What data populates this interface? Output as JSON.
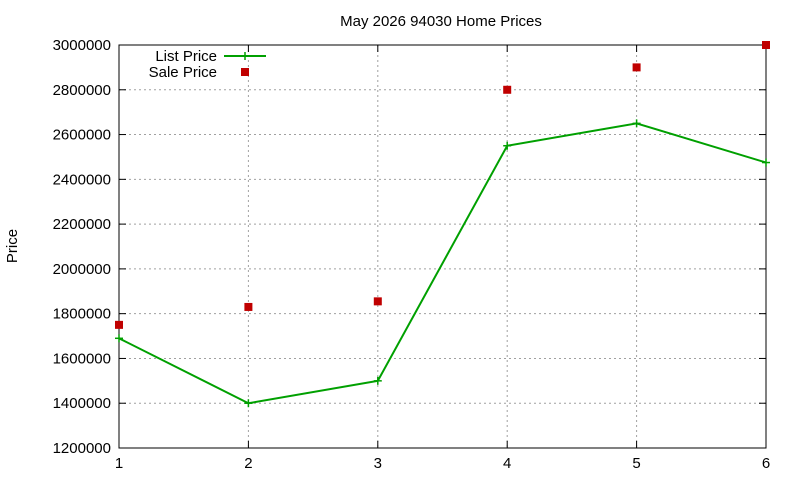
{
  "chart_data": {
    "type": "line",
    "title": "May 2026 94030 Home Prices",
    "xlabel": "",
    "ylabel": "Price",
    "x": [
      1,
      2,
      3,
      4,
      5,
      6
    ],
    "x_ticks": [
      "1",
      "2",
      "3",
      "4",
      "5",
      "6"
    ],
    "y_ticks": [
      "1200000",
      "1400000",
      "1600000",
      "1800000",
      "2000000",
      "2200000",
      "2400000",
      "2600000",
      "2800000",
      "3000000"
    ],
    "xlim": [
      1,
      6
    ],
    "ylim": [
      1200000,
      3000000
    ],
    "grid": true,
    "legend_position": "top-left",
    "series": [
      {
        "name": "List Price",
        "style": "linespoints",
        "marker": "plus",
        "color": "#00a000",
        "values": [
          1690000,
          1400000,
          1500000,
          2550000,
          2650000,
          2475000
        ]
      },
      {
        "name": "Sale Price",
        "style": "points",
        "marker": "square",
        "color": "#c00000",
        "values": [
          1750000,
          1830000,
          1855000,
          2800000,
          2900000,
          3000000
        ]
      }
    ]
  }
}
